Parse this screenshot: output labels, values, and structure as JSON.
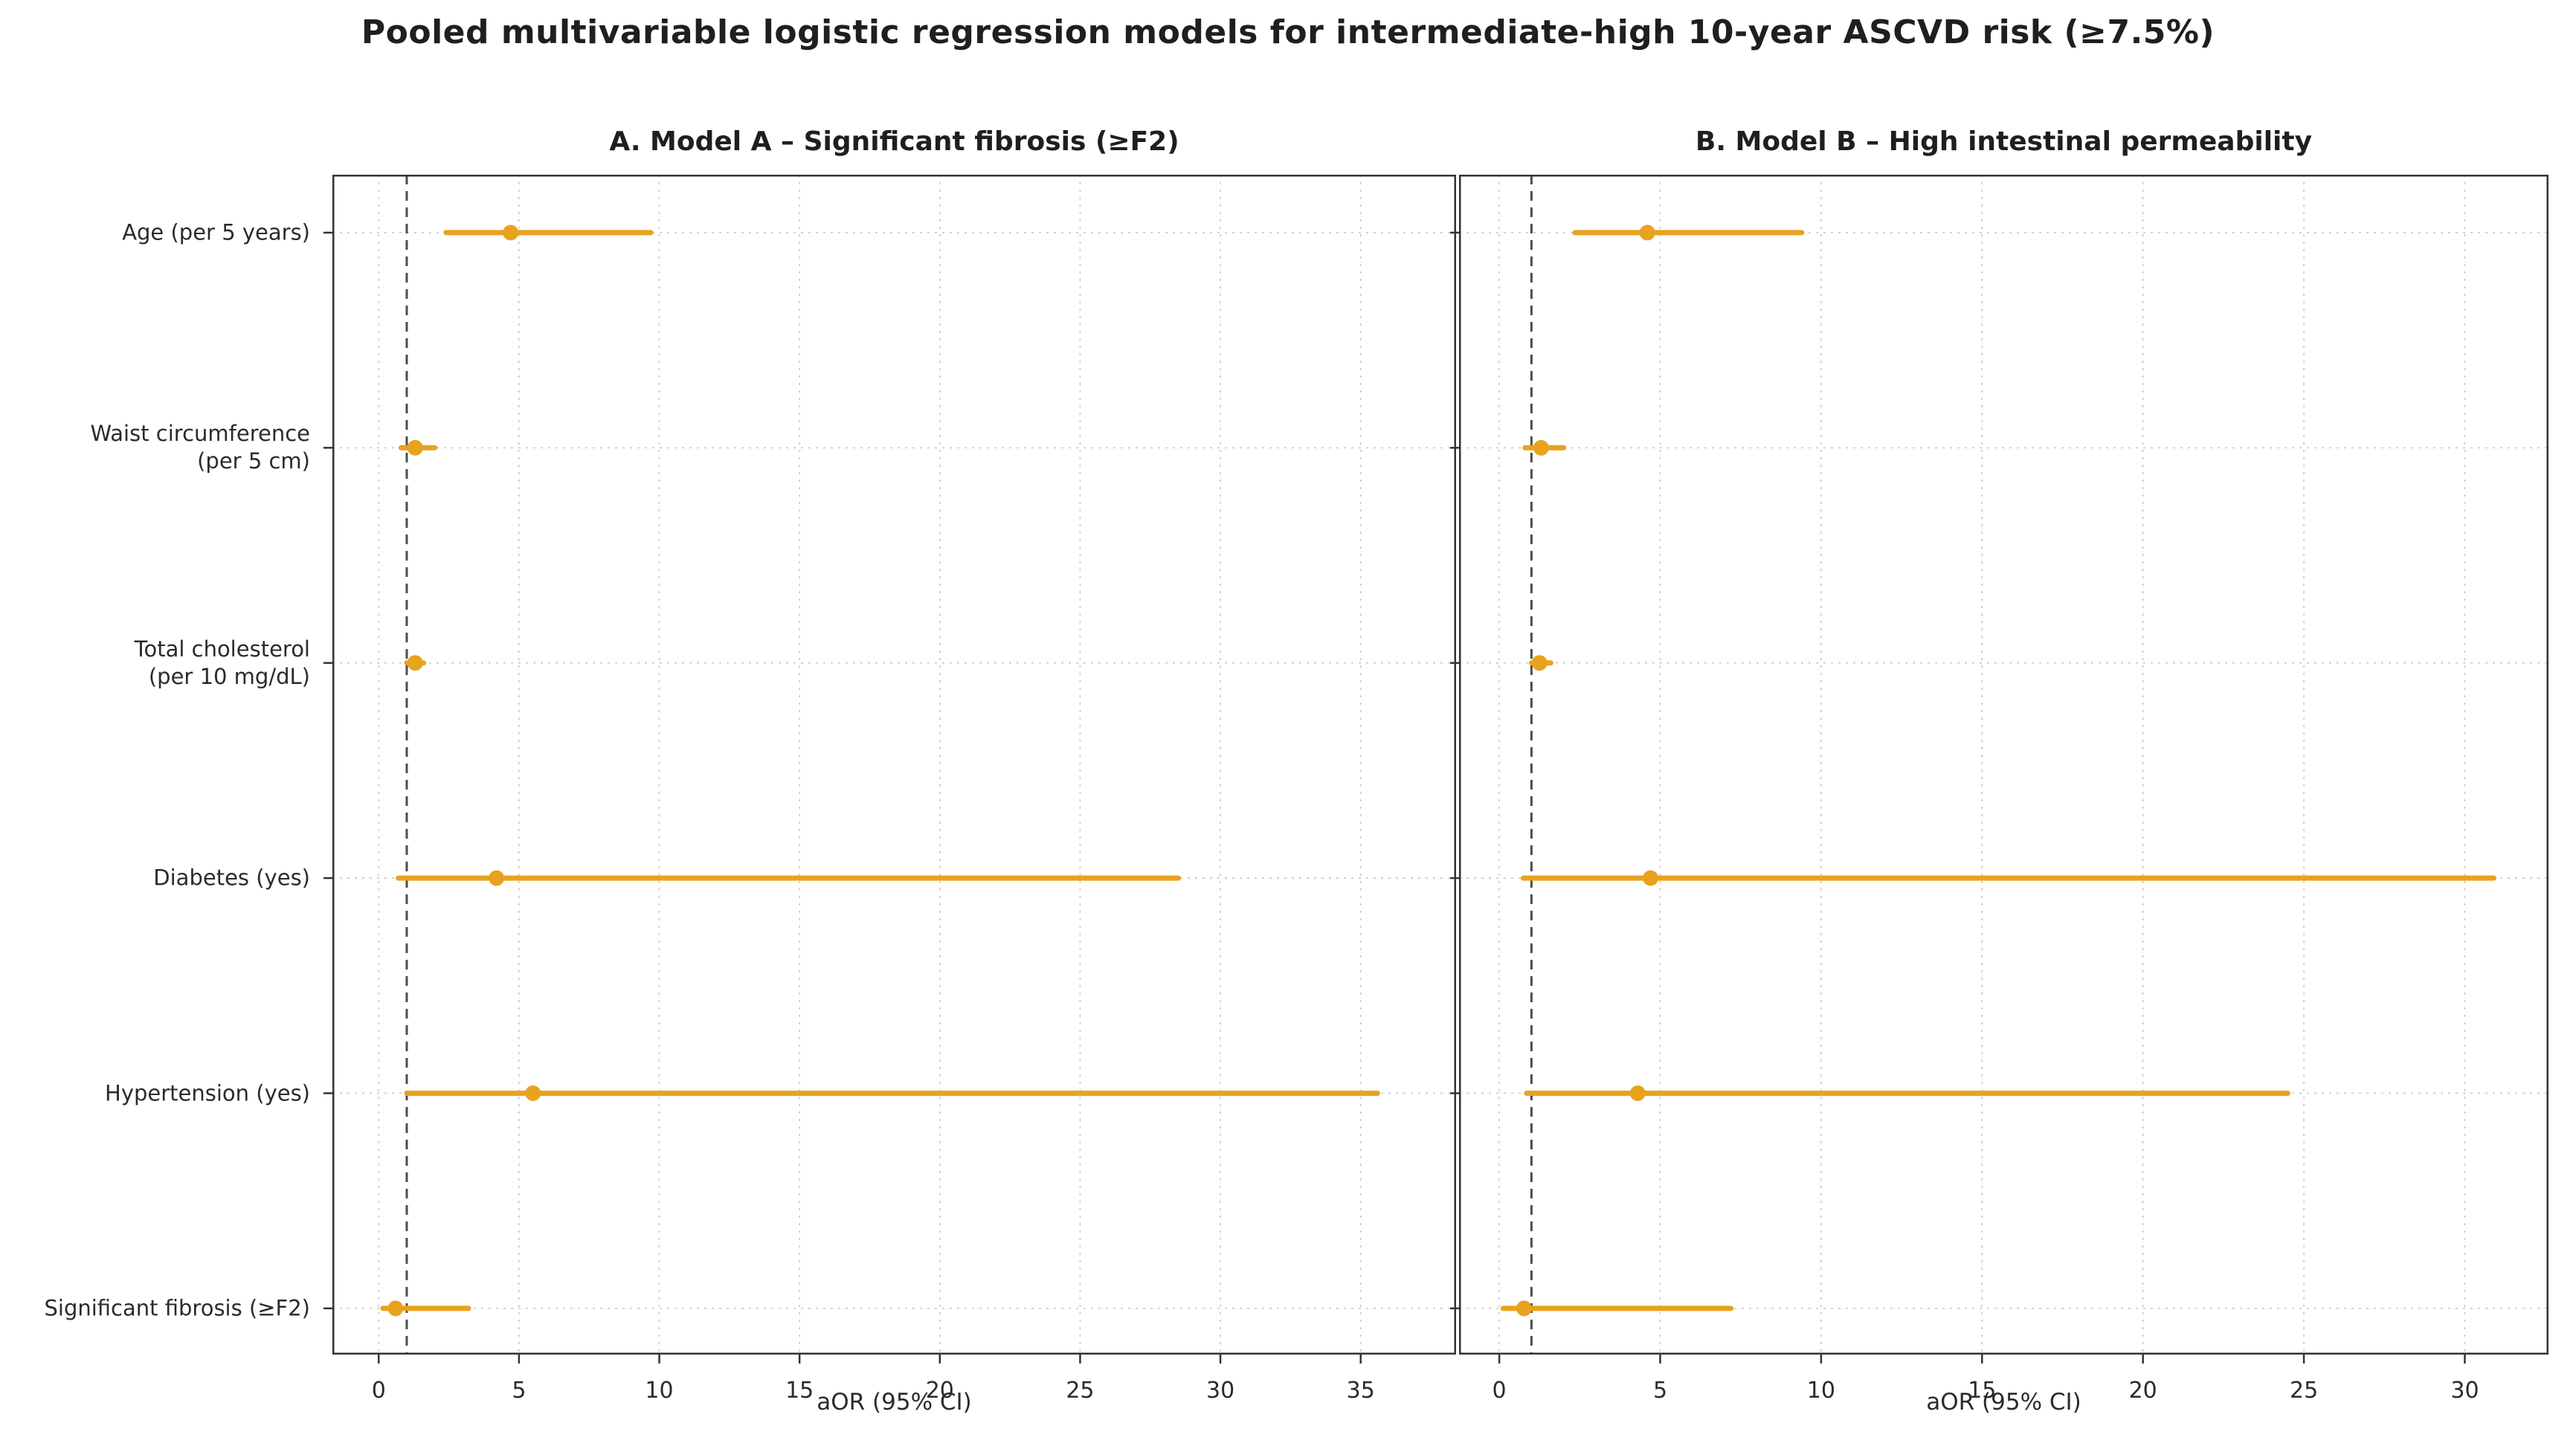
{
  "chart_data": {
    "type": "scatter",
    "subtype": "forest-plot",
    "title": "Pooled multivariable logistic regression models for intermediate-high 10-year ASCVD risk (≥7.5%)",
    "xlabel": "aOR (95% CI)",
    "reference_line": 1,
    "grid": true,
    "categories": [
      "Age (per 5 years)",
      "Waist circumference\n(per 5 cm)",
      "Total cholesterol\n(per 10 mg/dL)",
      "Diabetes (yes)",
      "Hypertension (yes)",
      "Significant fibrosis (≥F2)"
    ],
    "panels": [
      {
        "id": "A",
        "label": "A. Model A – Significant fibrosis (≥F2)",
        "xlim": [
          -1.65,
          38.4
        ],
        "xticks": [
          0,
          5,
          10,
          15,
          20,
          25,
          30,
          35
        ],
        "points": [
          {
            "variable": "Age (per 5 years)",
            "aor": 4.7,
            "ci_low": 2.4,
            "ci_high": 9.7
          },
          {
            "variable": "Waist circumference (per 5 cm)",
            "aor": 1.3,
            "ci_low": 0.8,
            "ci_high": 2.0
          },
          {
            "variable": "Total cholesterol (per 10 mg/dL)",
            "aor": 1.3,
            "ci_low": 1.0,
            "ci_high": 1.6
          },
          {
            "variable": "Diabetes (yes)",
            "aor": 4.2,
            "ci_low": 0.7,
            "ci_high": 28.5
          },
          {
            "variable": "Hypertension (yes)",
            "aor": 5.5,
            "ci_low": 1.0,
            "ci_high": 35.6
          },
          {
            "variable": "Significant fibrosis (≥F2)",
            "aor": 0.6,
            "ci_low": 0.15,
            "ci_high": 3.2
          }
        ]
      },
      {
        "id": "B",
        "label": "B. Model B – High intestinal permeability",
        "xlim": [
          -1.25,
          32.6
        ],
        "xticks": [
          0,
          5,
          10,
          15,
          20,
          25,
          30
        ],
        "points": [
          {
            "variable": "Age (per 5 years)",
            "aor": 4.6,
            "ci_low": 2.35,
            "ci_high": 9.4
          },
          {
            "variable": "Waist circumference (per 5 cm)",
            "aor": 1.3,
            "ci_low": 0.8,
            "ci_high": 2.0
          },
          {
            "variable": "Total cholesterol (per 10 mg/dL)",
            "aor": 1.25,
            "ci_low": 1.0,
            "ci_high": 1.6
          },
          {
            "variable": "Diabetes (yes)",
            "aor": 4.7,
            "ci_low": 0.75,
            "ci_high": 30.9
          },
          {
            "variable": "Hypertension (yes)",
            "aor": 4.3,
            "ci_low": 0.85,
            "ci_high": 24.5
          },
          {
            "variable": "Significant fibrosis (≥F2)",
            "aor": 0.77,
            "ci_low": 0.12,
            "ci_high": 7.2
          }
        ]
      }
    ],
    "colors": {
      "marker": "#E8A21E",
      "reference_line": "#4d4d4d",
      "grid": "#c8c8c8",
      "spine": "#333333",
      "text": "#2b2b2b"
    }
  }
}
